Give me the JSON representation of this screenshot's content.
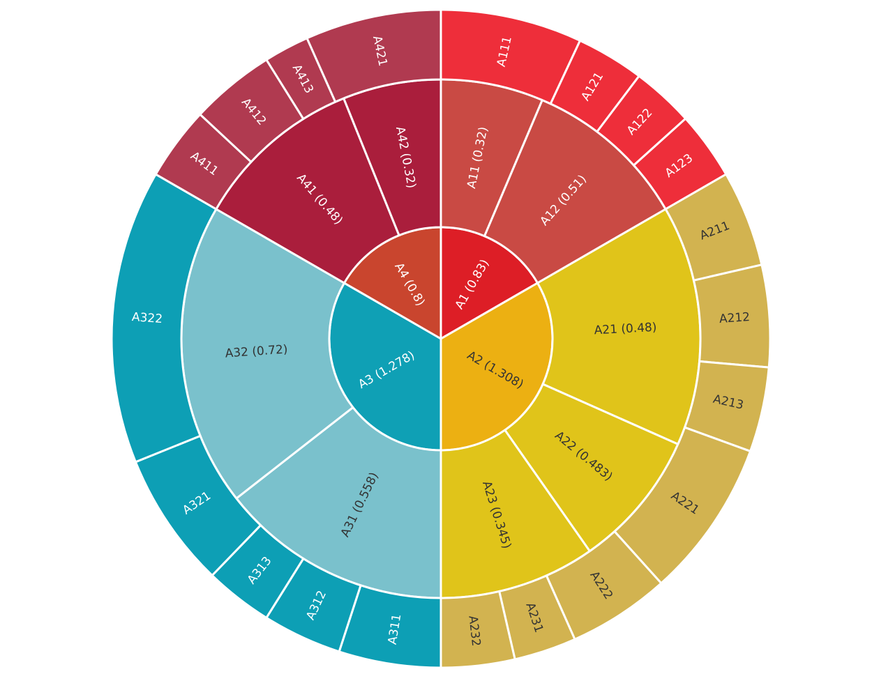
{
  "chart_data": {
    "type": "sunburst",
    "levels": [
      {
        "ring": "inner",
        "segments": [
          {
            "label": "A1 (0.83)",
            "start_deg": 0,
            "end_deg": 60,
            "color": "#dd1e26",
            "text_color": "#ffffff"
          },
          {
            "label": "A2 (1.308)",
            "start_deg": 60,
            "end_deg": 180,
            "color": "#ecb012",
            "text_color": "#333333"
          },
          {
            "label": "A3 (1.278)",
            "start_deg": 180,
            "end_deg": 300,
            "color": "#0fa0b5",
            "text_color": "#ffffff"
          },
          {
            "label": "A4 (0.8)",
            "start_deg": 300,
            "end_deg": 360,
            "color": "#c9452e",
            "text_color": "#ffffff"
          }
        ]
      },
      {
        "ring": "middle",
        "segments": [
          {
            "label": "A11 (0.32)",
            "start_deg": 0,
            "end_deg": 23,
            "color": "#c94a44",
            "text_color": "#ffffff"
          },
          {
            "label": "A12 (0.51)",
            "start_deg": 23,
            "end_deg": 60,
            "color": "#c94a44",
            "text_color": "#ffffff"
          },
          {
            "label": "A21 (0.48)",
            "start_deg": 60,
            "end_deg": 114,
            "color": "#e0c41a",
            "text_color": "#333333"
          },
          {
            "label": "A22 (0.483)",
            "start_deg": 114,
            "end_deg": 145,
            "color": "#e0c41a",
            "text_color": "#333333"
          },
          {
            "label": "A23 (0.345)",
            "start_deg": 145,
            "end_deg": 180,
            "color": "#e0c41a",
            "text_color": "#333333"
          },
          {
            "label": "A31 (0.558)",
            "start_deg": 180,
            "end_deg": 232,
            "color": "#7ac1cc",
            "text_color": "#333333"
          },
          {
            "label": "A32 (0.72)",
            "start_deg": 232,
            "end_deg": 300,
            "color": "#7ac1cc",
            "text_color": "#333333"
          },
          {
            "label": "A41 (0.48)",
            "start_deg": 300,
            "end_deg": 338,
            "color": "#aa1e3c",
            "text_color": "#ffffff"
          },
          {
            "label": "A42 (0.32)",
            "start_deg": 338,
            "end_deg": 360,
            "color": "#aa1e3c",
            "text_color": "#ffffff"
          }
        ]
      },
      {
        "ring": "outer",
        "segments": [
          {
            "label": "A111",
            "start_deg": 0,
            "end_deg": 25,
            "color": "#ee2e3a",
            "text_color": "#ffffff"
          },
          {
            "label": "A121",
            "start_deg": 25,
            "end_deg": 37,
            "color": "#ee2e3a",
            "text_color": "#ffffff"
          },
          {
            "label": "A122",
            "start_deg": 37,
            "end_deg": 48,
            "color": "#ee2e3a",
            "text_color": "#ffffff"
          },
          {
            "label": "A123",
            "start_deg": 48,
            "end_deg": 60,
            "color": "#ee2e3a",
            "text_color": "#ffffff"
          },
          {
            "label": "A211",
            "start_deg": 60,
            "end_deg": 77,
            "color": "#d2b350",
            "text_color": "#333333"
          },
          {
            "label": "A212",
            "start_deg": 77,
            "end_deg": 95,
            "color": "#d2b350",
            "text_color": "#333333"
          },
          {
            "label": "A213",
            "start_deg": 95,
            "end_deg": 110,
            "color": "#d2b350",
            "text_color": "#333333"
          },
          {
            "label": "A221",
            "start_deg": 110,
            "end_deg": 138,
            "color": "#d2b350",
            "text_color": "#333333"
          },
          {
            "label": "A222",
            "start_deg": 138,
            "end_deg": 156,
            "color": "#d2b350",
            "text_color": "#333333"
          },
          {
            "label": "A231",
            "start_deg": 156,
            "end_deg": 167,
            "color": "#d2b350",
            "text_color": "#333333"
          },
          {
            "label": "A232",
            "start_deg": 167,
            "end_deg": 180,
            "color": "#d2b350",
            "text_color": "#333333"
          },
          {
            "label": "A311",
            "start_deg": 180,
            "end_deg": 198,
            "color": "#0d9fb5",
            "text_color": "#ffffff"
          },
          {
            "label": "A312",
            "start_deg": 198,
            "end_deg": 212,
            "color": "#0d9fb5",
            "text_color": "#ffffff"
          },
          {
            "label": "A313",
            "start_deg": 212,
            "end_deg": 224,
            "color": "#0d9fb5",
            "text_color": "#ffffff"
          },
          {
            "label": "A321",
            "start_deg": 224,
            "end_deg": 248,
            "color": "#0d9fb5",
            "text_color": "#ffffff"
          },
          {
            "label": "A322",
            "start_deg": 248,
            "end_deg": 300,
            "color": "#0d9fb5",
            "text_color": "#ffffff"
          },
          {
            "label": "A411",
            "start_deg": 300,
            "end_deg": 313,
            "color": "#b03a50",
            "text_color": "#ffffff"
          },
          {
            "label": "A412",
            "start_deg": 313,
            "end_deg": 328,
            "color": "#b03a50",
            "text_color": "#ffffff"
          },
          {
            "label": "A413",
            "start_deg": 328,
            "end_deg": 336,
            "color": "#b03a50",
            "text_color": "#ffffff"
          },
          {
            "label": "A421",
            "start_deg": 336,
            "end_deg": 360,
            "color": "#b03a50",
            "text_color": "#ffffff"
          }
        ]
      }
    ]
  }
}
